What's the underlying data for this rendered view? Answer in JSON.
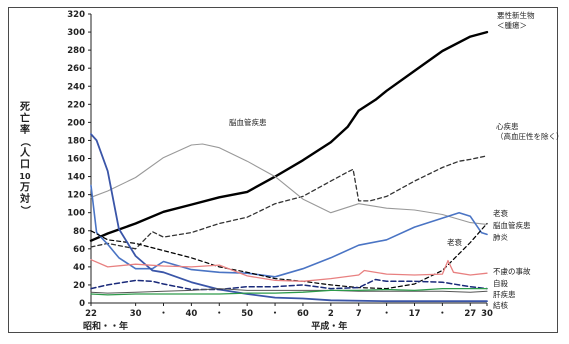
{
  "chart_data": {
    "type": "line",
    "title": "",
    "ylabel": "死亡率（人口10万対）",
    "ylabel_chars": [
      "死",
      "亡",
      "率",
      "（",
      "人",
      "口",
      "10",
      "万",
      "対",
      "）"
    ],
    "xlabel_left": "昭和・・年",
    "xlabel_right": "平成・年",
    "ylim": [
      0,
      320
    ],
    "yticks": [
      0,
      20,
      40,
      60,
      80,
      100,
      120,
      140,
      160,
      180,
      200,
      220,
      240,
      260,
      280,
      300,
      320
    ],
    "xlim": [
      1947,
      2018
    ],
    "xticks": [
      {
        "x": 1947,
        "label": "22"
      },
      {
        "x": 1955,
        "label": "30"
      },
      {
        "x": 1960,
        "label": "・"
      },
      {
        "x": 1965,
        "label": "40"
      },
      {
        "x": 1970,
        "label": "・"
      },
      {
        "x": 1975,
        "label": "50"
      },
      {
        "x": 1980,
        "label": "・"
      },
      {
        "x": 1985,
        "label": "60"
      },
      {
        "x": 1990,
        "label": "2"
      },
      {
        "x": 1995,
        "label": "7"
      },
      {
        "x": 2000,
        "label": "・"
      },
      {
        "x": 2005,
        "label": "17"
      },
      {
        "x": 2010,
        "label": "・"
      },
      {
        "x": 2015,
        "label": "27"
      },
      {
        "x": 2018,
        "label": "30"
      }
    ],
    "grid": false,
    "legend": "none",
    "series": [
      {
        "name": "悪性新生物＜腫瘍＞",
        "color": "#000000",
        "width": 2.4,
        "dash": "",
        "x": [
          1947,
          1950,
          1955,
          1960,
          1965,
          1970,
          1975,
          1980,
          1985,
          1990,
          1993,
          1995,
          1998,
          2000,
          2005,
          2010,
          2015,
          2018
        ],
        "y": [
          69,
          77,
          88,
          101,
          109,
          117,
          123,
          140,
          158,
          178,
          195,
          213,
          225,
          235,
          257,
          279,
          295,
          300
        ]
      },
      {
        "name": "心疾患（高血圧性を除く）",
        "color": "#333333",
        "width": 1.3,
        "dash": "4,3",
        "x": [
          1947,
          1950,
          1955,
          1958,
          1960,
          1965,
          1970,
          1975,
          1980,
          1985,
          1990,
          1993,
          1994,
          1995,
          1997,
          2000,
          2005,
          2010,
          2013,
          2015,
          2018
        ],
        "y": [
          62,
          66,
          60,
          79,
          73,
          78,
          88,
          95,
          110,
          118,
          135,
          145,
          148,
          113,
          113,
          118,
          135,
          150,
          157,
          159,
          163
        ]
      },
      {
        "name": "脳血管疾患",
        "color": "#999999",
        "width": 1.1,
        "dash": "",
        "x": [
          1947,
          1950,
          1955,
          1960,
          1965,
          1967,
          1970,
          1975,
          1980,
          1985,
          1990,
          1995,
          2000,
          2005,
          2010,
          2015,
          2018
        ],
        "y": [
          117,
          124,
          139,
          161,
          175,
          176,
          172,
          157,
          140,
          115,
          100,
          110,
          105,
          103,
          98,
          89,
          87
        ]
      },
      {
        "name": "肺炎",
        "color": "#4a74c4",
        "width": 1.6,
        "dash": "",
        "x": [
          1947,
          1948,
          1950,
          1952,
          1955,
          1958,
          1960,
          1965,
          1970,
          1975,
          1980,
          1985,
          1990,
          1995,
          2000,
          2005,
          2010,
          2013,
          2015,
          2017,
          2018
        ],
        "y": [
          130,
          78,
          65,
          50,
          38,
          38,
          46,
          37,
          34,
          33,
          29,
          38,
          50,
          64,
          70,
          84,
          94,
          100,
          96,
          78,
          76
        ]
      },
      {
        "name": "老衰",
        "color": "#000000",
        "width": 1.2,
        "dash": "4,3",
        "x": [
          1947,
          1950,
          1955,
          1960,
          1965,
          1970,
          1975,
          1980,
          1985,
          1990,
          1995,
          2000,
          2005,
          2010,
          2015,
          2018
        ],
        "y": [
          80,
          70,
          66,
          58,
          50,
          40,
          34,
          27,
          24,
          20,
          17,
          16,
          21,
          36,
          67,
          88
        ]
      },
      {
        "name": "結核",
        "color": "#3a55a8",
        "width": 1.8,
        "dash": "",
        "x": [
          1947,
          1948,
          1950,
          1952,
          1955,
          1958,
          1960,
          1965,
          1970,
          1975,
          1980,
          1985,
          1990,
          2000,
          2010,
          2018
        ],
        "y": [
          187,
          180,
          146,
          82,
          52,
          36,
          34,
          23,
          15,
          10,
          6,
          5,
          3,
          2,
          2,
          2
        ]
      },
      {
        "name": "不慮の事故",
        "color": "#e88080",
        "width": 1.3,
        "dash": "",
        "x": [
          1947,
          1950,
          1955,
          1960,
          1965,
          1970,
          1975,
          1980,
          1985,
          1990,
          1995,
          1996,
          2000,
          2005,
          2010,
          2011,
          2012,
          2015,
          2018
        ],
        "y": [
          48,
          40,
          43,
          41,
          40,
          42,
          30,
          25,
          24,
          27,
          31,
          36,
          32,
          31,
          32,
          47,
          34,
          31,
          33
        ]
      },
      {
        "name": "自殺",
        "color": "#1a2a7a",
        "width": 1.5,
        "dash": "5,3",
        "x": [
          1947,
          1950,
          1955,
          1958,
          1960,
          1965,
          1970,
          1975,
          1980,
          1985,
          1990,
          1995,
          1998,
          2000,
          2005,
          2010,
          2015,
          2018
        ],
        "y": [
          16,
          20,
          25,
          24,
          21,
          15,
          15,
          18,
          18,
          20,
          16,
          17,
          26,
          24,
          24,
          23,
          18,
          16
        ]
      },
      {
        "name": "肝疾患",
        "color": "#555555",
        "width": 1.0,
        "dash": "",
        "x": [
          1947,
          1950,
          1955,
          1960,
          1965,
          1970,
          1975,
          1980,
          1985,
          1990,
          1995,
          2000,
          2005,
          2010,
          2015,
          2018
        ],
        "y": [
          12,
          11,
          12,
          13,
          14,
          16,
          14,
          14,
          14,
          14,
          13,
          13,
          13,
          13,
          12,
          13
        ]
      },
      {
        "name": "腎疾患",
        "color": "#2d9a4a",
        "width": 1.3,
        "dash": "",
        "x": [
          1947,
          1950,
          1955,
          1960,
          1965,
          1970,
          1975,
          1980,
          1985,
          1990,
          1995,
          2000,
          2005,
          2010,
          2015,
          2018
        ],
        "y": [
          10,
          9,
          10,
          10,
          10,
          10,
          11,
          11,
          12,
          14,
          14,
          15,
          14,
          16,
          16,
          16
        ]
      }
    ],
    "annotations": [
      {
        "series": "悪性新生物＜腫瘍＞",
        "lines": [
          "悪性新生物",
          "＜腫瘍＞"
        ]
      },
      {
        "series": "心疾患（高血圧性を除く）",
        "lines": [
          "心疾患",
          "（高血圧性を除く）"
        ]
      },
      {
        "series": "脳血管疾患",
        "lines": [
          "脳血管疾患"
        ]
      },
      {
        "series": "老衰",
        "lines": [
          "老衰"
        ]
      },
      {
        "series": "脳血管疾患",
        "lines": [
          "脳血管疾患"
        ]
      },
      {
        "series": "肺炎",
        "lines": [
          "肺炎"
        ]
      },
      {
        "series": "老衰",
        "lines": [
          "老衰"
        ]
      },
      {
        "series": "不慮の事故",
        "lines": [
          "不慮の事故"
        ]
      },
      {
        "series": "自殺",
        "lines": [
          "自殺"
        ]
      },
      {
        "series": "肝疾患",
        "lines": [
          "肝疾患"
        ]
      },
      {
        "series": "結核",
        "lines": [
          "結核"
        ]
      }
    ]
  }
}
